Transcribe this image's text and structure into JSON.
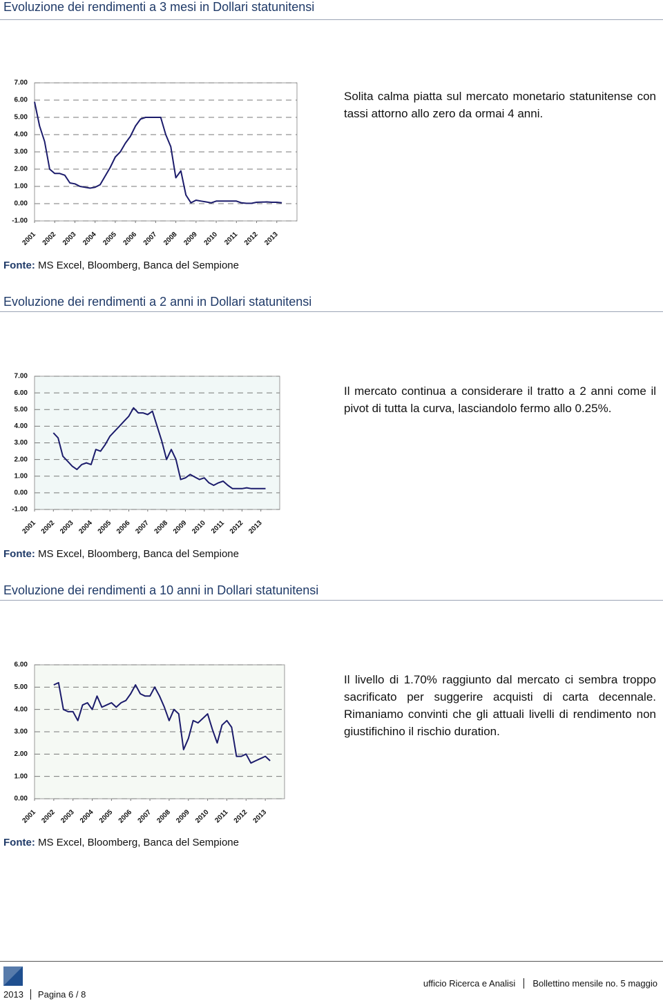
{
  "sections": [
    {
      "title": "Evoluzione dei rendimenti a 3 mesi in Dollari statunitensi",
      "chart_data": {
        "type": "line",
        "color": "#1b1b6b",
        "x": [
          2001,
          2001.25,
          2001.5,
          2001.75,
          2002,
          2002.25,
          2002.5,
          2002.75,
          2003,
          2003.25,
          2003.5,
          2003.75,
          2004,
          2004.25,
          2004.5,
          2004.75,
          2005,
          2005.25,
          2005.5,
          2005.75,
          2006,
          2006.25,
          2006.5,
          2006.75,
          2007,
          2007.25,
          2007.5,
          2007.75,
          2008,
          2008.25,
          2008.5,
          2008.75,
          2009,
          2009.25,
          2009.5,
          2009.75,
          2010,
          2010.25,
          2010.5,
          2010.75,
          2011,
          2011.25,
          2011.5,
          2011.75,
          2012,
          2012.25,
          2012.5,
          2012.75,
          2013,
          2013.25
        ],
        "values": [
          5.9,
          4.5,
          3.6,
          2.0,
          1.75,
          1.75,
          1.65,
          1.2,
          1.15,
          1.0,
          0.95,
          0.9,
          0.95,
          1.1,
          1.6,
          2.1,
          2.7,
          3.0,
          3.5,
          3.9,
          4.5,
          4.9,
          5.0,
          5.0,
          5.0,
          5.0,
          4.0,
          3.3,
          1.5,
          1.9,
          0.5,
          0.05,
          0.2,
          0.15,
          0.1,
          0.05,
          0.15,
          0.15,
          0.15,
          0.15,
          0.15,
          0.05,
          0.02,
          0.02,
          0.08,
          0.09,
          0.1,
          0.08,
          0.08,
          0.05
        ],
        "xlim": [
          2001,
          2014
        ],
        "xticks": [
          2001,
          2002,
          2003,
          2004,
          2005,
          2006,
          2007,
          2008,
          2009,
          2010,
          2011,
          2012,
          2013
        ],
        "ylim": [
          -1,
          7
        ],
        "yticks": [
          {
            "value": -1,
            "label": "-1.00"
          },
          {
            "value": 0,
            "label": "0.00"
          },
          {
            "value": 1,
            "label": "1.00"
          },
          {
            "value": 2,
            "label": "2.00"
          },
          {
            "value": 3,
            "label": "3.00"
          },
          {
            "value": 4,
            "label": "4.00"
          },
          {
            "value": 5,
            "label": "5.00"
          },
          {
            "value": 6,
            "label": "6.00"
          },
          {
            "value": 7,
            "label": "7.00"
          }
        ],
        "grid": true
      },
      "text": "Solita calma piatta sul mercato monetario statunitense con tassi attorno allo zero da ormai 4 anni.",
      "source_label": "Fonte:",
      "source": "MS Excel, Bloomberg, Banca del Sempione"
    },
    {
      "title": "Evoluzione dei rendimenti a 2 anni in Dollari statunitensi",
      "chart_data": {
        "type": "line",
        "color": "#1b1b6b",
        "x": [
          2002,
          2002.25,
          2002.5,
          2002.75,
          2003,
          2003.25,
          2003.5,
          2003.75,
          2004,
          2004.25,
          2004.5,
          2004.75,
          2005,
          2005.25,
          2005.5,
          2005.75,
          2006,
          2006.25,
          2006.5,
          2006.75,
          2007,
          2007.25,
          2007.5,
          2007.75,
          2008,
          2008.25,
          2008.5,
          2008.75,
          2009,
          2009.25,
          2009.5,
          2009.75,
          2010,
          2010.25,
          2010.5,
          2010.75,
          2011,
          2011.25,
          2011.5,
          2011.75,
          2012,
          2012.25,
          2012.5,
          2012.75,
          2013,
          2013.25
        ],
        "values": [
          3.6,
          3.3,
          2.2,
          1.9,
          1.6,
          1.4,
          1.7,
          1.8,
          1.7,
          2.6,
          2.5,
          2.9,
          3.4,
          3.7,
          4.0,
          4.3,
          4.6,
          5.1,
          4.8,
          4.8,
          4.7,
          4.9,
          4.0,
          3.1,
          2.0,
          2.6,
          2.0,
          0.8,
          0.9,
          1.1,
          0.95,
          0.8,
          0.9,
          0.6,
          0.45,
          0.6,
          0.7,
          0.45,
          0.25,
          0.25,
          0.25,
          0.3,
          0.25,
          0.25,
          0.25,
          0.25
        ],
        "xlim": [
          2001,
          2014
        ],
        "xticks": [
          2001,
          2002,
          2003,
          2004,
          2005,
          2006,
          2007,
          2008,
          2009,
          2010,
          2011,
          2012,
          2013
        ],
        "ylim": [
          -1,
          7
        ],
        "yticks": [
          {
            "value": -1,
            "label": "-1.00"
          },
          {
            "value": 0,
            "label": "0.00"
          },
          {
            "value": 1,
            "label": "1.00"
          },
          {
            "value": 2,
            "label": "2.00"
          },
          {
            "value": 3,
            "label": "3.00"
          },
          {
            "value": 4,
            "label": "4.00"
          },
          {
            "value": 5,
            "label": "5.00"
          },
          {
            "value": 6,
            "label": "6.00"
          },
          {
            "value": 7,
            "label": "7.00"
          }
        ],
        "grid": true
      },
      "text": "Il mercato continua a considerare il tratto a 2 anni come il pivot di tutta la curva, lasciandolo fermo allo 0.25%.",
      "source_label": "Fonte:",
      "source": "MS Excel, Bloomberg, Banca del Sempione"
    },
    {
      "title": "Evoluzione dei rendimenti a 10 anni in Dollari statunitensi",
      "chart_data": {
        "type": "line",
        "color": "#1b1b6b",
        "x": [
          2002,
          2002.25,
          2002.5,
          2002.75,
          2003,
          2003.25,
          2003.5,
          2003.75,
          2004,
          2004.25,
          2004.5,
          2004.75,
          2005,
          2005.25,
          2005.5,
          2005.75,
          2006,
          2006.25,
          2006.5,
          2006.75,
          2007,
          2007.25,
          2007.5,
          2007.75,
          2008,
          2008.25,
          2008.5,
          2008.75,
          2009,
          2009.25,
          2009.5,
          2009.75,
          2010,
          2010.25,
          2010.5,
          2010.75,
          2011,
          2011.25,
          2011.5,
          2011.75,
          2012,
          2012.25,
          2012.5,
          2012.75,
          2013,
          2013.25
        ],
        "values": [
          5.1,
          5.2,
          4.0,
          3.9,
          3.9,
          3.5,
          4.2,
          4.3,
          4.0,
          4.6,
          4.1,
          4.2,
          4.3,
          4.1,
          4.3,
          4.4,
          4.7,
          5.1,
          4.7,
          4.6,
          4.6,
          5.0,
          4.6,
          4.1,
          3.5,
          4.0,
          3.8,
          2.2,
          2.7,
          3.5,
          3.4,
          3.6,
          3.8,
          3.1,
          2.5,
          3.3,
          3.5,
          3.2,
          1.9,
          1.9,
          2.0,
          1.6,
          1.7,
          1.8,
          1.9,
          1.7
        ],
        "xlim": [
          2001,
          2014
        ],
        "xticks": [
          2001,
          2002,
          2003,
          2004,
          2005,
          2006,
          2007,
          2008,
          2009,
          2010,
          2011,
          2012,
          2013
        ],
        "ylim": [
          0,
          6
        ],
        "yticks": [
          {
            "value": 0,
            "label": "0.00"
          },
          {
            "value": 1,
            "label": "1.00"
          },
          {
            "value": 2,
            "label": "2.00"
          },
          {
            "value": 3,
            "label": "3.00"
          },
          {
            "value": 4,
            "label": "4.00"
          },
          {
            "value": 5,
            "label": "5.00"
          },
          {
            "value": 6,
            "label": "6.00"
          }
        ],
        "grid": true
      },
      "text": "Il livello di 1.70% raggiunto dal mercato ci sembra troppo sacrificato per suggerire acquisti di carta decennale. Rimaniamo convinti che gli attuali livelli di rendimento non giustifichino il rischio duration.",
      "source_label": "Fonte:",
      "source": "MS Excel, Bloomberg, Banca del Sempione"
    }
  ],
  "footer": {
    "year": "2013",
    "page": "Pagina 6 / 8",
    "office": "ufficio Ricerca e Analisi",
    "bulletin": "Bollettino mensile no. 5 maggio"
  }
}
